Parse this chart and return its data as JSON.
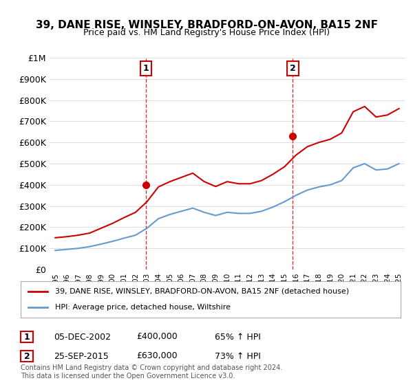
{
  "title": "39, DANE RISE, WINSLEY, BRADFORD-ON-AVON, BA15 2NF",
  "subtitle": "Price paid vs. HM Land Registry's House Price Index (HPI)",
  "xlabel": "",
  "ylabel": "",
  "ylim": [
    0,
    1000000
  ],
  "yticks": [
    0,
    100000,
    200000,
    300000,
    400000,
    500000,
    600000,
    700000,
    800000,
    900000,
    1000000
  ],
  "ytick_labels": [
    "£0",
    "£100K",
    "£200K",
    "£300K",
    "£400K",
    "£500K",
    "£600K",
    "£700K",
    "£800K",
    "£900K",
    "£1M"
  ],
  "background_color": "#ffffff",
  "grid_color": "#e0e0e0",
  "purchase_color": "#cc0000",
  "hpi_color": "#6699cc",
  "purchase_marker_color": "#cc0000",
  "annotation_box_color": "#cc0000",
  "purchases": [
    {
      "date_num": 2002.92,
      "price": 400000,
      "label": "1",
      "date_str": "05-DEC-2002",
      "pct": "65%"
    },
    {
      "date_num": 2015.73,
      "price": 630000,
      "label": "2",
      "date_str": "25-SEP-2015",
      "pct": "73%"
    }
  ],
  "legend_line1": "39, DANE RISE, WINSLEY, BRADFORD-ON-AVON, BA15 2NF (detached house)",
  "legend_line2": "HPI: Average price, detached house, Wiltshire",
  "footer": "Contains HM Land Registry data © Crown copyright and database right 2024.\nThis data is licensed under the Open Government Licence v3.0.",
  "hpi_years": [
    1995,
    1996,
    1997,
    1998,
    1999,
    2000,
    2001,
    2002,
    2003,
    2004,
    2005,
    2006,
    2007,
    2008,
    2009,
    2010,
    2011,
    2012,
    2013,
    2014,
    2015,
    2016,
    2017,
    2018,
    2019,
    2020,
    2021,
    2022,
    2023,
    2024,
    2025
  ],
  "hpi_values": [
    90000,
    95000,
    100000,
    108000,
    120000,
    133000,
    148000,
    162000,
    195000,
    240000,
    260000,
    275000,
    290000,
    270000,
    255000,
    270000,
    265000,
    265000,
    275000,
    295000,
    320000,
    350000,
    375000,
    390000,
    400000,
    420000,
    480000,
    500000,
    470000,
    475000,
    500000
  ],
  "price_years": [
    1995,
    1996,
    1997,
    1998,
    1999,
    2000,
    2001,
    2002,
    2003,
    2004,
    2005,
    2006,
    2007,
    2008,
    2009,
    2010,
    2011,
    2012,
    2013,
    2014,
    2015,
    2016,
    2017,
    2018,
    2019,
    2020,
    2021,
    2022,
    2023,
    2024,
    2025
  ],
  "price_values": [
    150000,
    155000,
    162000,
    172000,
    195000,
    218000,
    245000,
    270000,
    320000,
    390000,
    415000,
    435000,
    455000,
    415000,
    392000,
    415000,
    405000,
    405000,
    420000,
    450000,
    485000,
    540000,
    580000,
    600000,
    615000,
    645000,
    745000,
    770000,
    720000,
    730000,
    760000
  ],
  "xlim_start": 1994.5,
  "xlim_end": 2025.5,
  "xtick_years": [
    1995,
    1996,
    1997,
    1998,
    1999,
    2000,
    2001,
    2002,
    2003,
    2004,
    2005,
    2006,
    2007,
    2008,
    2009,
    2010,
    2011,
    2012,
    2013,
    2014,
    2015,
    2016,
    2017,
    2018,
    2019,
    2020,
    2021,
    2022,
    2023,
    2024,
    2025
  ]
}
